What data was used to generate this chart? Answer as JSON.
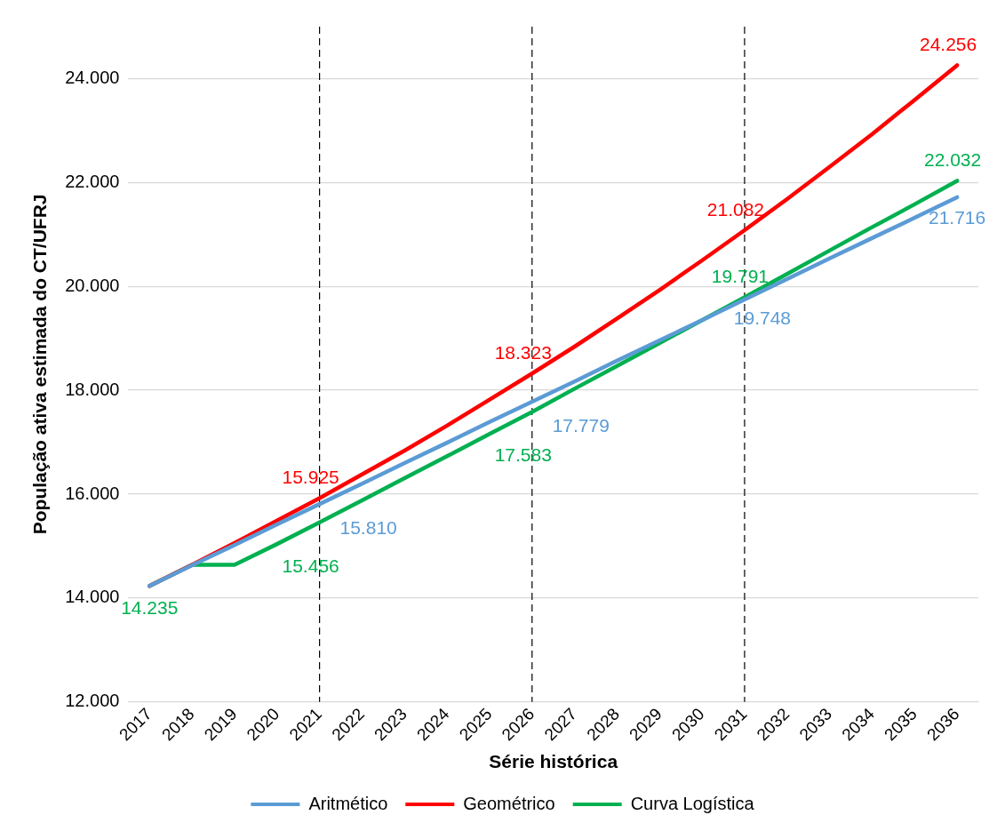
{
  "chart_data": {
    "type": "line",
    "xlabel": "Série histórica",
    "ylabel": "População ativa estimada do CT/UFRJ",
    "categories": [
      "2017",
      "2018",
      "2019",
      "2020",
      "2021",
      "2022",
      "2023",
      "2024",
      "2025",
      "2026",
      "2027",
      "2028",
      "2029",
      "2030",
      "2031",
      "2032",
      "2033",
      "2034",
      "2035",
      "2036"
    ],
    "series": [
      {
        "name": "Aritmético",
        "color": "#5b9bd5",
        "values": [
          14235,
          14630,
          15020,
          15420,
          15810,
          16200,
          16600,
          16990,
          17390,
          17779,
          18170,
          18570,
          18960,
          19350,
          19748,
          20140,
          20540,
          20930,
          21320,
          21716
        ],
        "value_labels": [
          null,
          null,
          null,
          null,
          "15.810",
          null,
          null,
          null,
          null,
          "17.779",
          null,
          null,
          null,
          null,
          "19.748",
          null,
          null,
          null,
          null,
          "21.716"
        ]
      },
      {
        "name": "Geométrico",
        "color": "#ff0000",
        "values": [
          14235,
          14640,
          15060,
          15490,
          15925,
          16380,
          16840,
          17320,
          17820,
          18323,
          18840,
          19380,
          19930,
          20500,
          21082,
          21680,
          22300,
          22930,
          23590,
          24256
        ],
        "value_labels": [
          null,
          null,
          null,
          null,
          "15.925",
          null,
          null,
          null,
          null,
          "18.323",
          null,
          null,
          null,
          null,
          "21.082",
          null,
          null,
          null,
          null,
          "24.256"
        ]
      },
      {
        "name": "Curva Logística",
        "color": "#00b050",
        "values": [
          14235,
          14640,
          14640,
          15040,
          15456,
          15880,
          16310,
          16730,
          17160,
          17583,
          18030,
          18470,
          18910,
          19350,
          19791,
          20240,
          20690,
          21140,
          21580,
          22032
        ],
        "value_labels": [
          "14.235",
          null,
          null,
          null,
          "15.456",
          null,
          null,
          null,
          null,
          "17.583",
          null,
          null,
          null,
          null,
          "19.791",
          null,
          null,
          null,
          null,
          "22.032"
        ]
      }
    ],
    "ylim": [
      12000,
      25000
    ],
    "yticks": [
      {
        "value": 12000,
        "label": "12.000"
      },
      {
        "value": 14000,
        "label": "14.000"
      },
      {
        "value": 16000,
        "label": "16.000"
      },
      {
        "value": 18000,
        "label": "18.000"
      },
      {
        "value": 20000,
        "label": "20.000"
      },
      {
        "value": 22000,
        "label": "22.000"
      },
      {
        "value": 24000,
        "label": "24.000"
      }
    ],
    "ref_lines": [
      {
        "axis": "x",
        "value": "2021",
        "color": "#000000",
        "line_style": "dashed"
      },
      {
        "axis": "x",
        "value": "2026",
        "color": "#000000",
        "line_style": "dashed"
      },
      {
        "axis": "x",
        "value": "2031",
        "color": "#000000",
        "line_style": "dashed"
      }
    ],
    "grid": "y",
    "legend": "bottom",
    "marker": "none",
    "line_style": "solid"
  }
}
